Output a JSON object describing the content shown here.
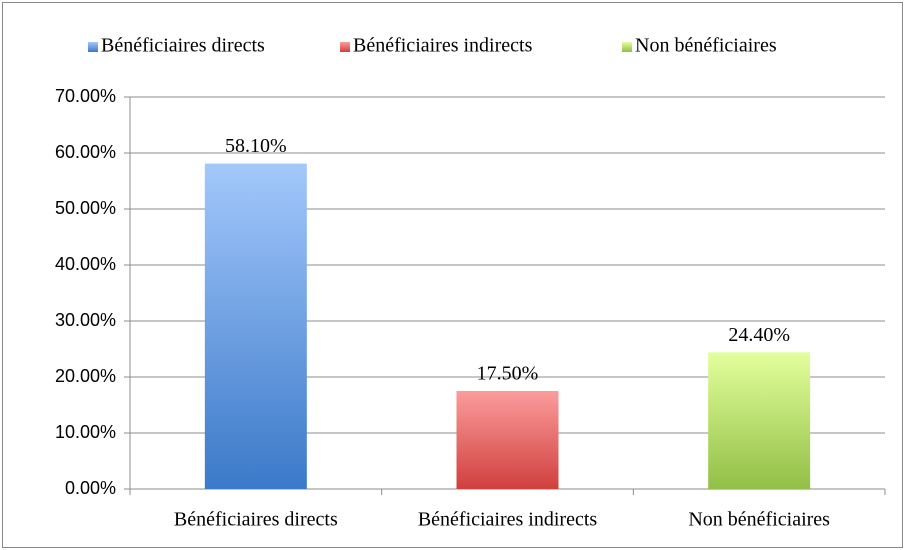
{
  "chart_data": {
    "type": "bar",
    "categories": [
      "Bénéficiaires directs",
      "Bénéficiaires indirects",
      "Non bénéficiaires"
    ],
    "values": [
      58.1,
      17.5,
      24.4
    ],
    "value_labels": [
      "58.10%",
      "17.50%",
      "24.40%"
    ],
    "colors": [
      [
        "#a3c8fb",
        "#3b79c9"
      ],
      [
        "#fb9c9c",
        "#d0403d"
      ],
      [
        "#e3ff9c",
        "#92bf47"
      ]
    ],
    "ylim": [
      0,
      70
    ],
    "yticks": [
      {
        "value": 0,
        "label": "0.00%"
      },
      {
        "value": 10,
        "label": "10.00%"
      },
      {
        "value": 20,
        "label": "20.00%"
      },
      {
        "value": 30,
        "label": "30.00%"
      },
      {
        "value": 40,
        "label": "40.00%"
      },
      {
        "value": 50,
        "label": "50.00%"
      },
      {
        "value": 60,
        "label": "60.00%"
      },
      {
        "value": 70,
        "label": "70.00%"
      }
    ],
    "grid": true,
    "legend": "top"
  }
}
